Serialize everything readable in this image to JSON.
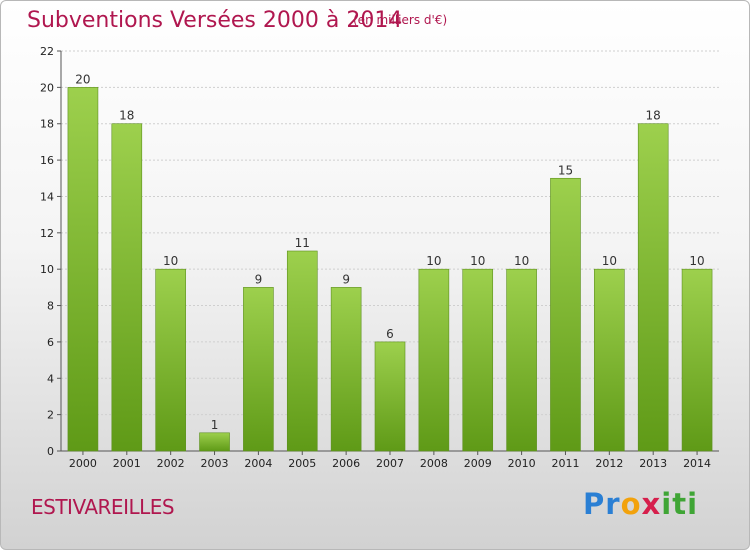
{
  "title": "Subventions Versées 2000 à 2014",
  "subtitle": "(en milliers d'€)",
  "commune": "ESTIVAREILLES",
  "logo": {
    "letters": [
      {
        "char": "P",
        "color": "#2a7fd4"
      },
      {
        "char": "r",
        "color": "#2a7fd4"
      },
      {
        "char": "o",
        "color": "#f2a20c"
      },
      {
        "char": "x",
        "color": "#d61f4c"
      },
      {
        "char": "i",
        "color": "#3fa535"
      },
      {
        "char": "t",
        "color": "#3fa535"
      },
      {
        "char": "i",
        "color": "#3fa535"
      }
    ]
  },
  "chart_data": {
    "type": "bar",
    "title": "Subventions Versées 2000 à 2014",
    "subtitle": "(en milliers d'€)",
    "categories": [
      "2000",
      "2001",
      "2002",
      "2003",
      "2004",
      "2005",
      "2006",
      "2007",
      "2008",
      "2009",
      "2010",
      "2011",
      "2012",
      "2013",
      "2014"
    ],
    "values": [
      20,
      18,
      10,
      1,
      9,
      11,
      9,
      6,
      10,
      10,
      10,
      15,
      10,
      18,
      10
    ],
    "data_labels": [
      "20",
      "18",
      "10",
      "1",
      "9",
      "11",
      "9",
      "6",
      "10",
      "10",
      "10",
      "15",
      "10",
      "18",
      "10"
    ],
    "ylim": [
      0,
      22
    ],
    "yticks": [
      0,
      2,
      4,
      6,
      8,
      10,
      12,
      14,
      16,
      18,
      20,
      22
    ],
    "ytick_labels": [
      "0",
      "2",
      "4",
      "6",
      "8",
      "10",
      "12",
      "14",
      "16",
      "18",
      "20",
      "22"
    ],
    "grid": true,
    "bar_color_top": "#9dd04d",
    "bar_color_bottom": "#5f9a17"
  }
}
